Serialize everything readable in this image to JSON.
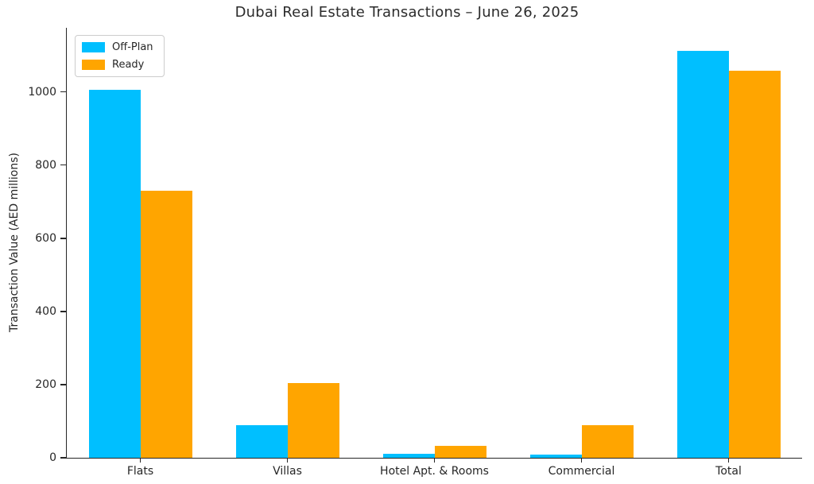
{
  "chart_data": {
    "type": "bar",
    "title": "Dubai Real Estate Transactions – June 26, 2025",
    "ylabel": "Transaction Value (AED millions)",
    "xlabel": "",
    "categories": [
      "Flats",
      "Villas",
      "Hotel Apt. & Rooms",
      "Commercial",
      "Total"
    ],
    "series": [
      {
        "name": "Off-Plan",
        "color": "#00bfff",
        "values": [
          1005,
          90,
          10,
          8,
          1113
        ]
      },
      {
        "name": "Ready",
        "color": "#ffa500",
        "values": [
          730,
          205,
          32,
          90,
          1057
        ]
      }
    ],
    "yticks": [
      0,
      200,
      400,
      600,
      800,
      1000
    ],
    "ylim": [
      0,
      1175
    ],
    "grid": false,
    "legend_position": "upper-left",
    "colors": {
      "axis": "#262626",
      "text": "#262626",
      "legend_border": "#cccccc",
      "background": "#ffffff"
    }
  }
}
